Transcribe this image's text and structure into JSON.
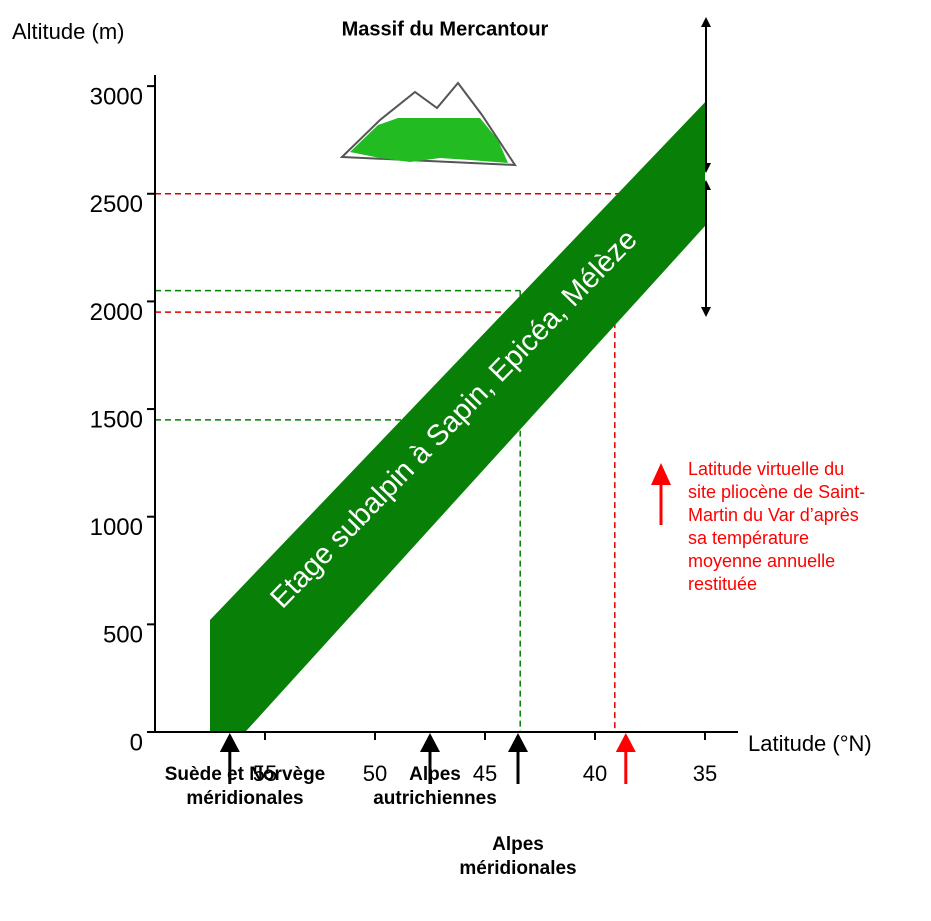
{
  "chart_data": {
    "type": "band",
    "title": "Massif du Mercantour",
    "y_label": "Altitude (m)",
    "x_label": "Latitude (°N)",
    "ylim": [
      0,
      3400
    ],
    "yticks": [
      0,
      500,
      1000,
      1500,
      2000,
      2500,
      3000
    ],
    "xlim": [
      60,
      33.5
    ],
    "xticks": [
      55,
      50,
      45,
      40,
      35
    ],
    "band_label": "Etage subalpin à Sapin, Epicéa, Mélèze",
    "band_color": "#088008",
    "band_x": [
      57.5,
      57.5,
      35,
      35,
      55.9
    ],
    "band_y": [
      0,
      520,
      2925,
      2350,
      0
    ],
    "ref_lines": [
      {
        "color": "#008000",
        "x": [
          60,
          43.4
        ],
        "y": [
          2050,
          2050
        ]
      },
      {
        "color": "#008000",
        "x": [
          60,
          48
        ],
        "y": [
          1450,
          1450
        ]
      },
      {
        "color": "#008000",
        "x": [
          43.4,
          43.4
        ],
        "y": [
          2050,
          0
        ]
      },
      {
        "color": "#e00000",
        "x": [
          60,
          35
        ],
        "y": [
          2500,
          2500
        ]
      },
      {
        "color": "#e00000",
        "x": [
          60,
          39.1
        ],
        "y": [
          1950,
          1950
        ]
      },
      {
        "color": "#e00000",
        "x": [
          39.1,
          39.1
        ],
        "y": [
          1950,
          0
        ]
      }
    ],
    "arrows": [
      {
        "x": 56.6,
        "color": "#000000",
        "label": [
          "Suède et Norvège",
          "méridionales"
        ]
      },
      {
        "x": 47.5,
        "color": "#000000",
        "label": [
          "Alpes",
          "autrichiennes"
        ]
      },
      {
        "x": 43.5,
        "color": "#000000",
        "label": [
          "Alpes",
          "méridionales"
        ]
      },
      {
        "x": 38.6,
        "color": "#ff0000",
        "label": []
      }
    ],
    "annotation": [
      "Latitude virtuelle du",
      "site pliocène de Saint-",
      "Martin du Var d’après",
      "sa température",
      "moyenne annuelle",
      "restituée"
    ]
  }
}
